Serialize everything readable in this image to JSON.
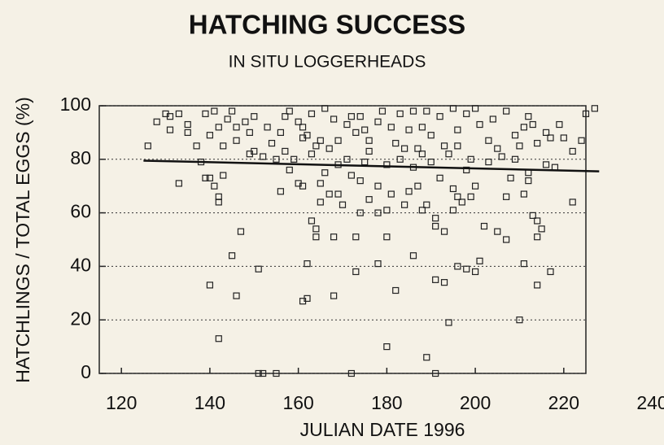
{
  "chart_data": {
    "type": "scatter",
    "title": "HATCHING SUCCESS",
    "subtitle": "IN SITU  LOGGERHEADS",
    "x_label": "JULIAN DATE  1996",
    "y_label": "HATCHLINGS / TOTAL EGGS (%)",
    "xlim": [
      115,
      225
    ],
    "ylim": [
      0,
      100
    ],
    "xticks": [
      120,
      140,
      160,
      180,
      200,
      220,
      240
    ],
    "yticks": [
      0,
      20,
      40,
      60,
      80,
      100
    ],
    "grid": true,
    "color": "#222222",
    "x": [
      151,
      152,
      155,
      172,
      191,
      189,
      180,
      142,
      194,
      210,
      161,
      162,
      146,
      168,
      140,
      182,
      191,
      193,
      214,
      151,
      173,
      196,
      198,
      200,
      201,
      211,
      162,
      178,
      186,
      145,
      147,
      180,
      168,
      173,
      164,
      164,
      193,
      191,
      202,
      205,
      207,
      214,
      215,
      217,
      163,
      191,
      213,
      214,
      174,
      178,
      180,
      188,
      195,
      197,
      142,
      142,
      156,
      165,
      167,
      169,
      181,
      184,
      189,
      196,
      199,
      207,
      211,
      222,
      160,
      161,
      165,
      170,
      176,
      178,
      185,
      195,
      200,
      208,
      212,
      139,
      140,
      141,
      133,
      143,
      152,
      149,
      155,
      157,
      159,
      138,
      137,
      140,
      135,
      131,
      128,
      126,
      130,
      131,
      133,
      135,
      139,
      141,
      142,
      144,
      145,
      146,
      148,
      149,
      150,
      153,
      156,
      157,
      158,
      160,
      161,
      162,
      163,
      164,
      165,
      166,
      168,
      169,
      171,
      172,
      173,
      174,
      175,
      176,
      178,
      179,
      181,
      182,
      183,
      185,
      186,
      187,
      188,
      189,
      190,
      192,
      193,
      195,
      196,
      198,
      200,
      201,
      203,
      204,
      206,
      207,
      209,
      211,
      212,
      213,
      214,
      216,
      217,
      219,
      222,
      224,
      225,
      227,
      180,
      183,
      186,
      190,
      194,
      198,
      203,
      209,
      212,
      216,
      218,
      169,
      172,
      176,
      163,
      161,
      146,
      143,
      150,
      154,
      167,
      171,
      175,
      184,
      188,
      196,
      205,
      210,
      220,
      199,
      192,
      187,
      174,
      166,
      158
    ],
    "values": [
      0,
      0,
      0,
      0,
      0,
      6,
      10,
      13,
      19,
      20,
      27,
      28,
      29,
      29,
      33,
      31,
      35,
      34,
      33,
      39,
      38,
      40,
      39,
      38,
      42,
      41,
      41,
      41,
      44,
      44,
      53,
      51,
      51,
      51,
      51,
      54,
      53,
      55,
      55,
      53,
      50,
      51,
      54,
      38,
      57,
      58,
      59,
      57,
      60,
      60,
      61,
      61,
      61,
      64,
      64,
      66,
      68,
      64,
      67,
      67,
      67,
      63,
      63,
      66,
      66,
      66,
      67,
      64,
      71,
      70,
      71,
      63,
      65,
      70,
      68,
      69,
      70,
      73,
      72,
      73,
      73,
      70,
      71,
      74,
      81,
      82,
      80,
      83,
      80,
      79,
      85,
      89,
      90,
      91,
      94,
      85,
      97,
      96,
      97,
      93,
      97,
      98,
      92,
      95,
      98,
      92,
      94,
      90,
      96,
      92,
      90,
      96,
      98,
      94,
      92,
      89,
      97,
      85,
      87,
      99,
      95,
      87,
      93,
      96,
      90,
      96,
      91,
      87,
      94,
      98,
      92,
      86,
      97,
      91,
      98,
      84,
      92,
      98,
      89,
      96,
      85,
      99,
      91,
      97,
      99,
      93,
      87,
      95,
      81,
      98,
      89,
      92,
      96,
      93,
      86,
      90,
      88,
      93,
      83,
      87,
      97,
      99,
      78,
      80,
      77,
      79,
      82,
      76,
      79,
      80,
      75,
      78,
      77,
      78,
      74,
      83,
      82,
      88,
      87,
      85,
      83,
      86,
      84,
      80,
      79,
      84,
      82,
      85,
      84,
      85,
      88,
      80,
      73,
      70,
      72,
      75,
      76
    ],
    "trend": {
      "x": [
        125,
        228
      ],
      "values": [
        79.5,
        75.5
      ],
      "color": "#111111"
    }
  }
}
